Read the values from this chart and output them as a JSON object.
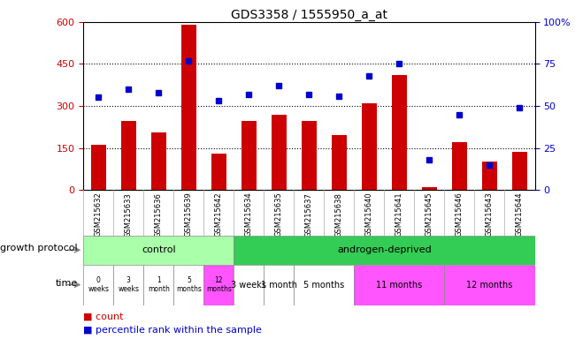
{
  "title": "GDS3358 / 1555950_a_at",
  "samples": [
    "GSM215632",
    "GSM215633",
    "GSM215636",
    "GSM215639",
    "GSM215642",
    "GSM215634",
    "GSM215635",
    "GSM215637",
    "GSM215638",
    "GSM215640",
    "GSM215641",
    "GSM215645",
    "GSM215646",
    "GSM215643",
    "GSM215644"
  ],
  "counts": [
    160,
    245,
    205,
    590,
    130,
    245,
    270,
    245,
    195,
    310,
    410,
    10,
    170,
    100,
    135
  ],
  "percentiles": [
    55,
    60,
    58,
    77,
    53,
    57,
    62,
    57,
    56,
    68,
    75,
    18,
    45,
    15,
    49
  ],
  "ylim_left": [
    0,
    600
  ],
  "ylim_right": [
    0,
    100
  ],
  "yticks_left": [
    0,
    150,
    300,
    450,
    600
  ],
  "yticks_right": [
    0,
    25,
    50,
    75,
    100
  ],
  "bar_color": "#cc0000",
  "scatter_color": "#0000cc",
  "grid_color": "#000000",
  "ctrl_color": "#aaffaa",
  "andr_color": "#33cc55",
  "ctrl_time_colors": [
    "#ffffff",
    "#ffffff",
    "#ffffff",
    "#ffffff",
    "#ff55ff"
  ],
  "andr_time_colors": [
    "#ffffff",
    "#ffffff",
    "#ffffff",
    "#ff55ff",
    "#ff55ff"
  ],
  "time_labels_control": [
    "0\nweeks",
    "3\nweeks",
    "1\nmonth",
    "5\nmonths",
    "12\nmonths"
  ],
  "time_labels_androgen": [
    "3 weeks",
    "1 month",
    "5 months",
    "11 months",
    "12 months"
  ],
  "andr_sample_counts": [
    1,
    1,
    2,
    3,
    3
  ],
  "bg_color": "#ffffff",
  "label_bg": "#d8d8d8",
  "tick_color_left": "#cc0000",
  "tick_color_right": "#0000cc",
  "legend_count_color": "#cc0000",
  "legend_pct_color": "#0000cc"
}
